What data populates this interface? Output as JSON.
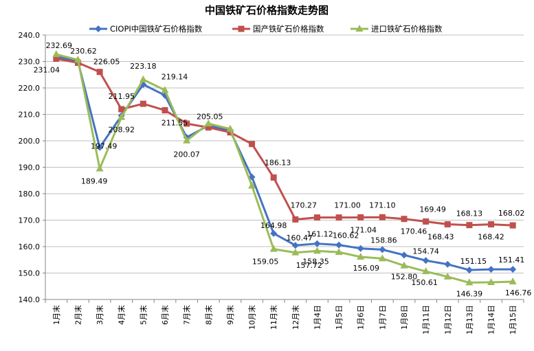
{
  "chart_data": {
    "type": "line",
    "title": "中国铁矿石价格指数走势图",
    "xlabel": "",
    "ylabel": "",
    "ylim": [
      140,
      240
    ],
    "yticks": [
      "140.0",
      "150.0",
      "160.0",
      "170.0",
      "180.0",
      "190.0",
      "200.0",
      "210.0",
      "220.0",
      "230.0",
      "240.0"
    ],
    "grid": true,
    "legend_position": "top",
    "categories": [
      "1月末",
      "2月末",
      "3月末",
      "4月末",
      "5月末",
      "6月末",
      "7月末",
      "8月末",
      "9月末",
      "10月末",
      "11月末",
      "12月末",
      "1月4日",
      "1月5日",
      "1月6日",
      "1月7日",
      "1月8日",
      "1月11日",
      "1月12日",
      "1月13日",
      "1月14日",
      "1月15日"
    ],
    "series": [
      {
        "name": "CIOPI中国铁矿石价格指数",
        "color": "#4472C4",
        "marker": "diamond",
        "values": [
          231.9,
          230.0,
          197.49,
          209.5,
          221.3,
          217.2,
          201.3,
          205.8,
          203.8,
          186.3,
          164.98,
          160.47,
          161.12,
          160.62,
          159.3,
          158.86,
          156.8,
          154.74,
          153.3,
          151.15,
          151.4,
          151.41
        ],
        "labels": [
          null,
          null,
          "197.49",
          null,
          null,
          null,
          null,
          null,
          null,
          null,
          "164.98",
          "160.47",
          "161.12",
          "160.62",
          null,
          "158.86",
          null,
          "154.74",
          null,
          "151.15",
          null,
          "151.41"
        ]
      },
      {
        "name": "国产铁矿石价格指数",
        "color": "#C0504D",
        "marker": "square",
        "values": [
          231.04,
          229.5,
          226.05,
          211.95,
          214.0,
          211.55,
          206.5,
          205.05,
          203.2,
          198.8,
          186.13,
          170.27,
          171.0,
          171.0,
          171.04,
          171.1,
          170.46,
          169.49,
          168.43,
          168.13,
          168.42,
          168.02
        ],
        "labels": [
          "231.04",
          null,
          "226.05",
          "211.95",
          null,
          "211.55",
          null,
          "205.05",
          null,
          null,
          "186.13",
          "170.27",
          "171.00",
          null,
          "171.04",
          "171.10",
          "170.46",
          "169.49",
          "168.43",
          "168.13",
          "168.42",
          "168.02"
        ]
      },
      {
        "name": "进口铁矿石价格指数",
        "color": "#9BBB59",
        "marker": "triangle",
        "values": [
          232.69,
          230.62,
          189.49,
          208.92,
          223.18,
          219.14,
          200.07,
          206.5,
          204.5,
          183.0,
          159.05,
          157.72,
          158.35,
          157.9,
          156.09,
          155.5,
          152.8,
          150.61,
          148.6,
          146.39,
          146.5,
          146.76
        ],
        "labels": [
          "232.69",
          "230.62",
          "189.49",
          "208.92",
          "223.18",
          "219.14",
          "200.07",
          null,
          null,
          null,
          "159.05",
          "157.72",
          "158.35",
          null,
          "156.09",
          null,
          "152.80",
          "150.61",
          null,
          "146.39",
          null,
          "146.76"
        ]
      }
    ]
  }
}
